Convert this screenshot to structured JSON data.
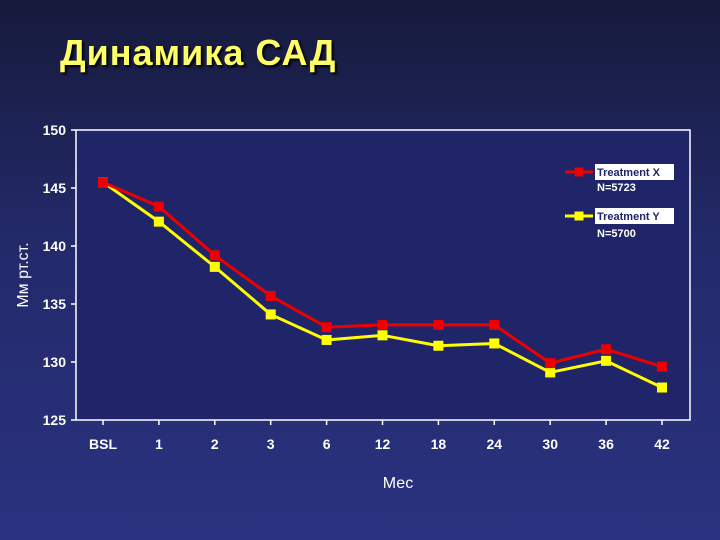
{
  "slide": {
    "title": "Динамика САД"
  },
  "chart_data": {
    "type": "line",
    "title": "Динамика САД",
    "xlabel": "Мес",
    "ylabel": "Мм рт.ст.",
    "categories": [
      "BSL",
      "1",
      "2",
      "3",
      "6",
      "12",
      "18",
      "24",
      "30",
      "36",
      "42"
    ],
    "ylim": [
      125,
      150
    ],
    "yticks": [
      125,
      130,
      135,
      140,
      145,
      150
    ],
    "grid": false,
    "legend_position": "top-right",
    "series": [
      {
        "name": "Treatment X",
        "subtitle": "N=5723",
        "color": "#ee0000",
        "values": [
          145.5,
          143.4,
          139.2,
          135.7,
          133.0,
          133.2,
          133.2,
          133.2,
          129.9,
          131.1,
          129.6
        ]
      },
      {
        "name": "Treatment Y",
        "subtitle": "N=5700",
        "color": "#ffff00",
        "values": [
          145.5,
          142.1,
          138.2,
          134.1,
          131.9,
          132.3,
          131.4,
          131.6,
          129.1,
          130.1,
          127.8
        ]
      }
    ]
  },
  "colors": {
    "plot_background": "#1f2568",
    "plot_border": "#ffffff",
    "title_color": "#ffff66",
    "text_color": "#ffffff"
  }
}
